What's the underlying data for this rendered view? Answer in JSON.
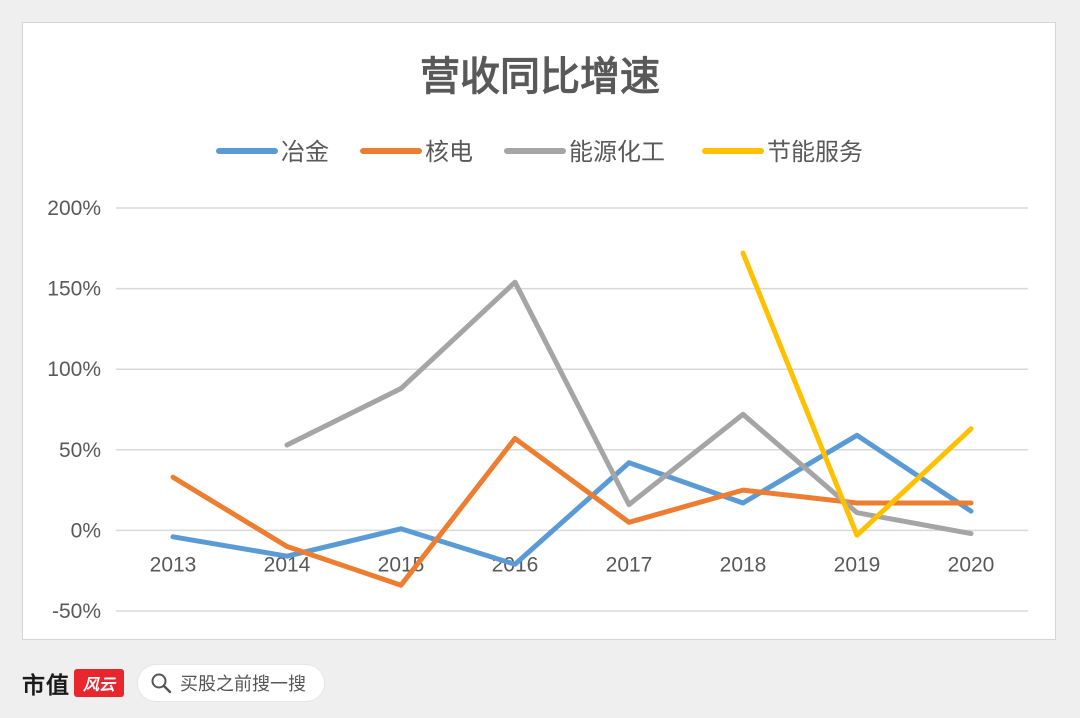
{
  "chart_data": {
    "type": "line",
    "title": "营收同比增速",
    "categories": [
      "2013",
      "2014",
      "2015",
      "2016",
      "2017",
      "2018",
      "2019",
      "2020"
    ],
    "y_ticks": [
      "200%",
      "150%",
      "100%",
      "50%",
      "0%",
      "-50%"
    ],
    "ylim": [
      -50,
      200
    ],
    "grid": true,
    "legend_position": "top",
    "series": [
      {
        "name": "冶金",
        "color": "#5b9bd5",
        "values": [
          -4,
          -16,
          1,
          -21,
          42,
          17,
          59,
          12
        ]
      },
      {
        "name": "核电",
        "color": "#ed7d31",
        "values": [
          33,
          -10,
          -34,
          57,
          5,
          25,
          17,
          17
        ]
      },
      {
        "name": "能源化工",
        "color": "#a5a5a5",
        "values": [
          null,
          53,
          88,
          154,
          16,
          72,
          11,
          -2
        ]
      },
      {
        "name": "节能服务",
        "color": "#ffc000",
        "values": [
          null,
          null,
          null,
          null,
          null,
          172,
          -3,
          63
        ]
      }
    ]
  },
  "footer": {
    "brand": "市值",
    "brand_logo": "风云",
    "search_icon": "search-icon",
    "search_placeholder": "买股之前搜一搜"
  }
}
